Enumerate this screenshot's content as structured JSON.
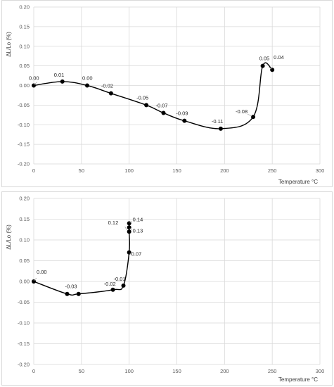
{
  "chart_data": [
    {
      "type": "line",
      "title": "",
      "xlabel": "Temperature °C",
      "ylabel": "ΔL/Lo (%)",
      "xlim": [
        0,
        300
      ],
      "ylim": [
        -0.2,
        0.2
      ],
      "xticks": [
        "0",
        "50",
        "100",
        "150",
        "200",
        "250",
        "300"
      ],
      "yticks": [
        "0.20",
        "0.15",
        "0.10",
        "0.05",
        "0.00",
        "-0.05",
        "-0.10",
        "-0.15",
        "-0.20"
      ],
      "grid": true,
      "legend": "none",
      "line_color": "#000000",
      "series": [
        {
          "x": [
            0,
            30,
            56,
            81,
            118,
            136,
            158,
            196,
            230,
            240,
            250
          ],
          "y": [
            0.0,
            0.01,
            0.0,
            -0.02,
            -0.05,
            -0.07,
            -0.09,
            -0.11,
            -0.08,
            0.05,
            0.04
          ],
          "labels": [
            "0.00",
            "0.01",
            "0.00",
            "-0.02",
            "-0.05",
            "-0.07",
            "-0.09",
            "-0.11",
            "-0.08",
            "0.05",
            "0.04"
          ]
        }
      ]
    },
    {
      "type": "line",
      "title": "",
      "xlabel": "Temperature °C",
      "ylabel": "ΔL/Lo (%)",
      "xlim": [
        0,
        300
      ],
      "ylim": [
        -0.2,
        0.2
      ],
      "xticks": [
        "0",
        "50",
        "100",
        "150",
        "200",
        "250",
        "300"
      ],
      "yticks": [
        "0.20",
        "0.15",
        "0.10",
        "0.05",
        "0.00",
        "-0.05",
        "-0.10",
        "-0.15",
        "-0.20"
      ],
      "grid": true,
      "legend": "none",
      "line_color": "#000000",
      "series": [
        {
          "x": [
            0,
            35,
            47,
            83,
            94,
            100,
            100,
            100,
            100
          ],
          "y": [
            0.0,
            -0.03,
            -0.03,
            -0.02,
            -0.01,
            0.07,
            0.12,
            0.13,
            0.14
          ],
          "labels": [
            "0.00",
            "-0.03",
            "",
            "-0.02",
            "-0.01",
            "0.07",
            "0.12",
            "0.13",
            "0.14"
          ]
        }
      ]
    }
  ]
}
